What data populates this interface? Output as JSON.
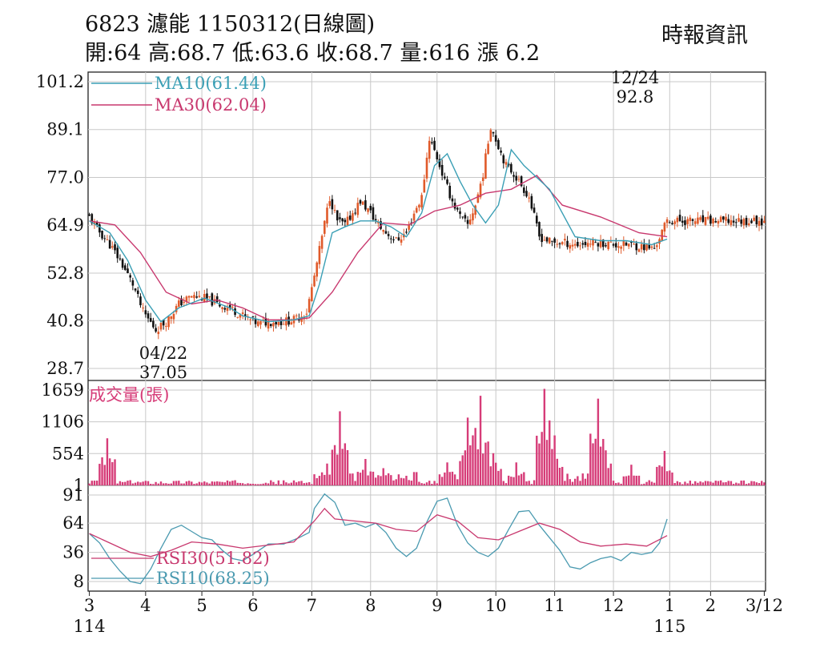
{
  "header": {
    "title": "6823  濾能 1150312(日線圖)",
    "ohlc": "開:64 高:68.7 低:63.6 收:68.7 量:616 漲 6.2",
    "source": "時報資訊"
  },
  "colors": {
    "up": "#e05a2a",
    "down": "#111111",
    "ma10": "#3a9fb5",
    "ma30": "#c8386e",
    "volume": "#d63c78",
    "rsi10": "#4a9ab0",
    "rsi30": "#c8386e",
    "grid": "#c8c8c8"
  },
  "chart_data": {
    "type": "candlestick",
    "price_panel": {
      "y_ticks": [
        "101.2",
        "89.1",
        "77.0",
        "64.9",
        "52.8",
        "40.8",
        "28.7"
      ],
      "ylim": [
        28.7,
        101.2
      ],
      "legend": [
        "MA10(61.44)",
        "MA30(62.04)"
      ],
      "annotations": [
        {
          "date": "12/24",
          "value": "92.8"
        },
        {
          "date": "04/22",
          "value": "37.05"
        }
      ],
      "close_trend_x": [
        0,
        3,
        8,
        12,
        17,
        21,
        26,
        30,
        35,
        40,
        45,
        50,
        55,
        60,
        66,
        70,
        75,
        80,
        85,
        88,
        91,
        94,
        97,
        100,
        103,
        106,
        110,
        113,
        116,
        120,
        124,
        127,
        130,
        133,
        136,
        139,
        142,
        145,
        148,
        151,
        154,
        157,
        160,
        163,
        166,
        169,
        172,
        176,
        181,
        186,
        191,
        196,
        200,
        206,
        211,
        216,
        221,
        226
      ],
      "close_trend_y": [
        67,
        64,
        60,
        56,
        50,
        43,
        38.5,
        40.5,
        45,
        47,
        46.5,
        45,
        44,
        42,
        40,
        40.5,
        40.5,
        41,
        43,
        52,
        62,
        72,
        66,
        65,
        68,
        71,
        68,
        65,
        63,
        61,
        63,
        68,
        72,
        87,
        82,
        76,
        71,
        67,
        65,
        70,
        78,
        90,
        85,
        80,
        78,
        75,
        72,
        62,
        60.5,
        60.5,
        60,
        60.5,
        60.5,
        60,
        60,
        59.5,
        59,
        66
      ],
      "ma10_x": [
        0,
        8,
        15,
        22,
        28,
        35,
        45,
        55,
        60,
        70,
        80,
        86,
        90,
        95,
        100,
        106,
        112,
        118,
        124,
        130,
        135,
        140,
        145,
        150,
        155,
        160,
        165,
        170,
        175,
        180,
        190,
        200,
        210,
        220,
        226
      ],
      "ma10_y": [
        66,
        63,
        56,
        46,
        40.5,
        44,
        46.5,
        44,
        42,
        40.5,
        41,
        42,
        50,
        63,
        64.5,
        66,
        66,
        64.5,
        62,
        68,
        80,
        83,
        76,
        70,
        65.5,
        70,
        84,
        80,
        77,
        74,
        62,
        61,
        61,
        60,
        61.4
      ],
      "ma30_x": [
        0,
        10,
        20,
        30,
        40,
        50,
        60,
        70,
        80,
        86,
        95,
        105,
        115,
        125,
        135,
        145,
        155,
        165,
        175,
        185,
        200,
        215,
        226
      ],
      "ma30_y": [
        66,
        65,
        58,
        48,
        45,
        46,
        44,
        41,
        41,
        41.5,
        48,
        58,
        65.5,
        65,
        68.5,
        70,
        73,
        74,
        77.5,
        70,
        67,
        63,
        62
      ]
    },
    "volume_panel": {
      "title": "成交量(張)",
      "y_ticks": [
        "1659",
        "1106",
        "554",
        "1"
      ],
      "ylim": [
        1,
        1659
      ],
      "spike_day": [
        7,
        93,
        98,
        108,
        115,
        140,
        148,
        151,
        153,
        156,
        158,
        167,
        178,
        180,
        182,
        199,
        201,
        212,
        225
      ],
      "spike_value": [
        820,
        380,
        1290,
        460,
        300,
        400,
        1180,
        1000,
        1560,
        750,
        560,
        400,
        1680,
        1130,
        870,
        1510,
        680,
        360,
        600
      ]
    },
    "rsi_panel": {
      "y_ticks": [
        "91",
        "64",
        "36",
        "8"
      ],
      "ylim": [
        0,
        100
      ],
      "legend": [
        "RSI30(51.82)",
        "RSI10(68.25)"
      ],
      "rsi10_x": [
        0,
        4,
        8,
        12,
        16,
        20,
        24,
        28,
        32,
        36,
        40,
        44,
        48,
        52,
        56,
        60,
        64,
        70,
        76,
        82,
        86,
        88,
        92,
        96,
        100,
        104,
        108,
        112,
        116,
        120,
        124,
        128,
        132,
        136,
        140,
        144,
        148,
        152,
        156,
        160,
        164,
        168,
        172,
        176,
        180,
        184,
        188,
        192,
        196,
        200,
        204,
        208,
        212,
        216,
        220,
        223,
        226
      ],
      "rsi10_y": [
        54,
        45,
        30,
        18,
        8,
        6,
        20,
        40,
        58,
        62,
        56,
        50,
        48,
        38,
        30,
        28,
        34,
        44,
        44,
        50,
        55,
        78,
        92,
        84,
        62,
        64,
        60,
        64,
        55,
        40,
        32,
        40,
        65,
        85,
        88,
        62,
        45,
        36,
        32,
        40,
        58,
        75,
        76,
        62,
        50,
        38,
        22,
        20,
        26,
        30,
        32,
        28,
        36,
        34,
        36,
        45,
        68
      ],
      "rsi30_x": [
        0,
        8,
        16,
        24,
        32,
        40,
        50,
        60,
        70,
        80,
        88,
        92,
        96,
        104,
        112,
        120,
        128,
        136,
        144,
        152,
        160,
        168,
        176,
        184,
        192,
        200,
        210,
        218,
        226
      ],
      "rsi30_y": [
        54,
        45,
        36,
        32,
        38,
        46,
        44,
        40,
        43,
        46,
        66,
        78,
        68,
        66,
        64,
        58,
        56,
        72,
        66,
        50,
        48,
        56,
        64,
        58,
        46,
        42,
        44,
        42,
        52
      ]
    },
    "x_axis": {
      "month_labels": [
        "3",
        "4",
        "5",
        "6",
        "7",
        "8",
        "9",
        "10",
        "11",
        "12",
        "1",
        "2",
        "3/12"
      ],
      "month_day_index": [
        0,
        22,
        44,
        64,
        87,
        110,
        136,
        159,
        182,
        205,
        227,
        243,
        264
      ],
      "year_labels": [
        "114",
        "115"
      ],
      "year_day_index": [
        0,
        227
      ],
      "total_days": 265
    }
  }
}
